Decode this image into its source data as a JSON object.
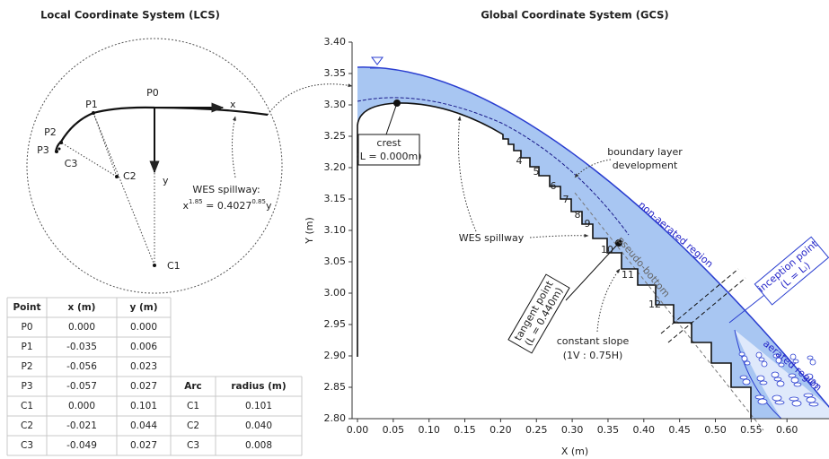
{
  "lcs": {
    "title": "Local Coordinate System (LCS)",
    "points": [
      "P0",
      "P1",
      "P2",
      "P3"
    ],
    "centers": [
      "C1",
      "C2",
      "C3"
    ],
    "x_axis": "x",
    "y_axis": "y",
    "equation_label": "WES spillway:",
    "equation": {
      "base": "x",
      "exp1": "1.85",
      "mid": " = 0.4027",
      "exp2": "0.85",
      "end": "y"
    }
  },
  "point_table": {
    "header": [
      "Point",
      "x (m)",
      "y (m)"
    ],
    "rows": [
      [
        "P0",
        "0.000",
        "0.000"
      ],
      [
        "P1",
        "-0.035",
        "0.006"
      ],
      [
        "P2",
        "-0.056",
        "0.023"
      ],
      [
        "P3",
        "-0.057",
        "0.027"
      ],
      [
        "C1",
        "0.000",
        "0.101"
      ],
      [
        "C2",
        "-0.021",
        "0.044"
      ],
      [
        "C3",
        "-0.049",
        "0.027"
      ]
    ]
  },
  "arc_table": {
    "header": [
      "Arc",
      "radius (m)"
    ],
    "rows": [
      [
        "C1",
        "0.101"
      ],
      [
        "C2",
        "0.040"
      ],
      [
        "C3",
        "0.008"
      ]
    ]
  },
  "gcs": {
    "title": "Global Coordinate System (GCS)",
    "xlabel": "X (m)",
    "ylabel": "Y (m)",
    "xlim": [
      0,
      0.66
    ],
    "ylim": [
      2.8,
      3.4
    ],
    "xticks": [
      {
        "value": 0,
        "label": "0.00"
      },
      {
        "value": 0.05,
        "label": "0.05"
      },
      {
        "value": 0.1,
        "label": "0.10"
      },
      {
        "value": 0.15,
        "label": "0.15"
      },
      {
        "value": 0.2,
        "label": "0.20"
      },
      {
        "value": 0.25,
        "label": "0.25"
      },
      {
        "value": 0.3,
        "label": "0.30"
      },
      {
        "value": 0.35,
        "label": "0.35"
      },
      {
        "value": 0.4,
        "label": "0.40"
      },
      {
        "value": 0.45,
        "label": "0.45"
      },
      {
        "value": 0.5,
        "label": "0.50"
      },
      {
        "value": 0.55,
        "label": "0.55"
      },
      {
        "value": 0.6,
        "label": "0.60"
      }
    ],
    "yticks": [
      {
        "value": 2.8,
        "label": "2.80"
      },
      {
        "value": 2.85,
        "label": "2.85"
      },
      {
        "value": 2.9,
        "label": "2.90"
      },
      {
        "value": 2.95,
        "label": "2.95"
      },
      {
        "value": 3.0,
        "label": "3.00"
      },
      {
        "value": 3.05,
        "label": "3.05"
      },
      {
        "value": 3.1,
        "label": "3.10"
      },
      {
        "value": 3.15,
        "label": "3.15"
      },
      {
        "value": 3.2,
        "label": "3.20"
      },
      {
        "value": 3.25,
        "label": "3.25"
      },
      {
        "value": 3.3,
        "label": "3.30"
      },
      {
        "value": 3.35,
        "label": "3.35"
      },
      {
        "value": 3.4,
        "label": "3.40"
      }
    ],
    "crest": [
      "crest",
      "(L = 0.000m)"
    ],
    "boundary_layer": [
      "boundary layer",
      "development"
    ],
    "non_aerated": "non-aerated region",
    "wes": "WES spillway",
    "pseudo_bottom": "pseudo-bottom",
    "inception": [
      "inception point",
      "(L = Lᵢ)"
    ],
    "aerated": "aerated region",
    "tangent": [
      "tangent point",
      "(L = 0.440m)"
    ],
    "slope": [
      "constant slope",
      "(1V : 0.75H)"
    ],
    "steps": [
      "4",
      "5",
      "6",
      "7",
      "8",
      "9",
      "10",
      "11",
      "12"
    ]
  }
}
